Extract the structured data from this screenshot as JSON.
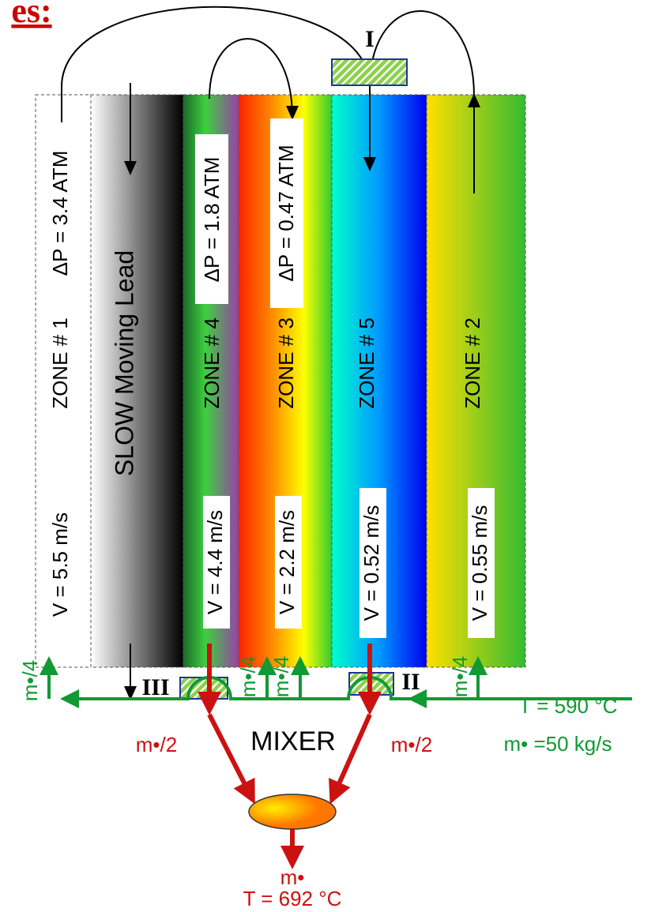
{
  "title": "es:",
  "valves": [
    "I",
    "II",
    "III"
  ],
  "lead": "SLOW Moving Lead",
  "zones": [
    {
      "label": "ZONE # 1",
      "pressure_drop": "ΔP = 3.4 ATM",
      "velocity": "V = 5.5 m/s"
    },
    {
      "label": "ZONE # 4",
      "pressure_drop": "ΔP = 1.8 ATM",
      "velocity": "V = 4.4 m/s"
    },
    {
      "label": "ZONE # 3",
      "pressure_drop": "ΔP = 0.47 ATM",
      "velocity": "V = 2.2 m/s"
    },
    {
      "label": "ZONE # 5",
      "velocity": "V = 0.52 m/s"
    },
    {
      "label": "ZONE # 2",
      "velocity": "V = 0.55 m/s"
    }
  ],
  "splits": [
    "m•/4",
    "m•/4",
    "m•/4",
    "m•/4"
  ],
  "inlet": {
    "temperature": "T = 590 °C",
    "flow": "m• =50 kg/s"
  },
  "mixer": "MIXER",
  "halves": [
    "m•/2",
    "m•/2"
  ],
  "outlet": {
    "flow": "m•",
    "temperature": "T = 692 °C"
  }
}
